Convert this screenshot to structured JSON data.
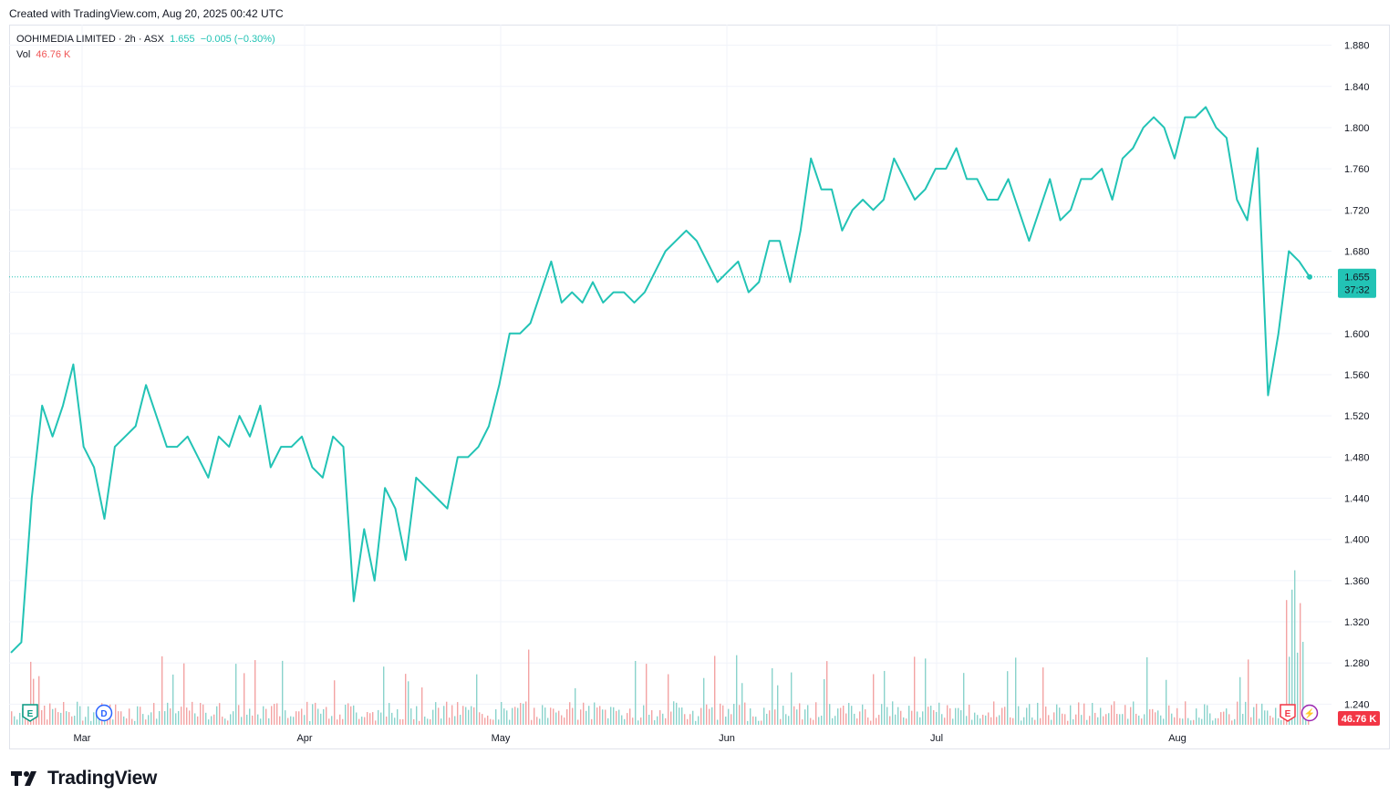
{
  "header": {
    "credit": "Created with TradingView.com, Aug 20, 2025 00:42 UTC"
  },
  "legend": {
    "symbol": "OOH!MEDIA LIMITED · 2h · ASX",
    "last": "1.655",
    "change": "−0.005 (−0.30%)",
    "vol_label": "Vol",
    "vol_value": "46.76 K"
  },
  "price_label": {
    "price": "1.655",
    "countdown": "37:32"
  },
  "volume_label": "46.76 K",
  "markers": [
    {
      "icon": "earnings-icon",
      "text": "E",
      "color": "#089981"
    },
    {
      "icon": "dividend-icon",
      "text": "D",
      "color": "#2962ff"
    },
    {
      "icon": "earnings-icon",
      "text": "E",
      "color": "#f23645"
    },
    {
      "icon": "lightning-icon",
      "text": "⚡",
      "color": "#9c27b0"
    }
  ],
  "footer": {
    "brand": "TradingView"
  },
  "colors": {
    "line": "#22c3b5",
    "vol_up": "#8ad3cc",
    "vol_down": "#f3a3a3",
    "grid": "#f0f3fa"
  },
  "chart_data": {
    "type": "line",
    "ylim": [
      1.22,
      1.9
    ],
    "x_labels": [
      "Mar",
      "Apr",
      "May",
      "Jun",
      "Jul",
      "Aug"
    ],
    "y_ticks": [
      "1.880",
      "1.840",
      "1.800",
      "1.760",
      "1.720",
      "1.680",
      "1.640",
      "1.600",
      "1.560",
      "1.520",
      "1.480",
      "1.440",
      "1.400",
      "1.360",
      "1.320",
      "1.280",
      "1.240"
    ],
    "last_price": 1.655,
    "series": [
      {
        "x": [
          "Feb 19",
          "Feb 20",
          "Feb 21",
          "Feb 24",
          "Feb 25",
          "Feb 26",
          "Feb 27",
          "Feb 28",
          "Mar 3",
          "Mar 4",
          "Mar 5",
          "Mar 6",
          "Mar 7",
          "Mar 10",
          "Mar 11",
          "Mar 12",
          "Mar 13",
          "Mar 14",
          "Mar 17",
          "Mar 18",
          "Mar 19",
          "Mar 20",
          "Mar 21",
          "Mar 24",
          "Mar 25",
          "Mar 26",
          "Mar 27",
          "Mar 28",
          "Mar 31",
          "Apr 1",
          "Apr 2",
          "Apr 3",
          "Apr 4",
          "Apr 7",
          "Apr 8",
          "Apr 9",
          "Apr 10",
          "Apr 11",
          "Apr 14",
          "Apr 15",
          "Apr 16",
          "Apr 17",
          "Apr 22",
          "Apr 23",
          "Apr 24",
          "Apr 28",
          "Apr 29",
          "Apr 30",
          "May 1",
          "May 2",
          "May 5",
          "May 6",
          "May 7",
          "May 8",
          "May 9",
          "May 12",
          "May 13",
          "May 14",
          "May 15",
          "May 16",
          "May 19",
          "May 20",
          "May 21",
          "May 22",
          "May 23",
          "May 26",
          "May 27",
          "May 28",
          "May 29",
          "May 30",
          "Jun 2",
          "Jun 3",
          "Jun 4",
          "Jun 5",
          "Jun 6",
          "Jun 10",
          "Jun 11",
          "Jun 12",
          "Jun 13",
          "Jun 16",
          "Jun 17",
          "Jun 18",
          "Jun 19",
          "Jun 20",
          "Jun 23",
          "Jun 24",
          "Jun 25",
          "Jun 26",
          "Jun 27",
          "Jun 30",
          "Jul 1",
          "Jul 2",
          "Jul 3",
          "Jul 4",
          "Jul 7",
          "Jul 8",
          "Jul 9",
          "Jul 10",
          "Jul 11",
          "Jul 14",
          "Jul 15",
          "Jul 16",
          "Jul 17",
          "Jul 18",
          "Jul 21",
          "Jul 22",
          "Jul 23",
          "Jul 24",
          "Jul 25",
          "Jul 28",
          "Jul 29",
          "Jul 30",
          "Jul 31",
          "Aug 1",
          "Aug 4",
          "Aug 5",
          "Aug 6",
          "Aug 7",
          "Aug 8",
          "Aug 11",
          "Aug 12",
          "Aug 13",
          "Aug 14",
          "Aug 15",
          "Aug 18",
          "Aug 19"
        ],
        "values": [
          1.29,
          1.3,
          1.44,
          1.53,
          1.5,
          1.53,
          1.57,
          1.49,
          1.47,
          1.42,
          1.49,
          1.5,
          1.51,
          1.55,
          1.52,
          1.49,
          1.49,
          1.5,
          1.48,
          1.46,
          1.5,
          1.49,
          1.52,
          1.5,
          1.53,
          1.47,
          1.49,
          1.49,
          1.5,
          1.47,
          1.46,
          1.5,
          1.49,
          1.34,
          1.41,
          1.36,
          1.45,
          1.43,
          1.38,
          1.46,
          1.45,
          1.44,
          1.43,
          1.48,
          1.48,
          1.49,
          1.51,
          1.55,
          1.6,
          1.6,
          1.61,
          1.64,
          1.67,
          1.63,
          1.64,
          1.63,
          1.65,
          1.63,
          1.64,
          1.64,
          1.63,
          1.64,
          1.66,
          1.68,
          1.69,
          1.7,
          1.69,
          1.67,
          1.65,
          1.66,
          1.67,
          1.64,
          1.65,
          1.69,
          1.69,
          1.65,
          1.7,
          1.77,
          1.74,
          1.74,
          1.7,
          1.72,
          1.73,
          1.72,
          1.73,
          1.77,
          1.75,
          1.73,
          1.74,
          1.76,
          1.76,
          1.78,
          1.75,
          1.75,
          1.73,
          1.73,
          1.75,
          1.72,
          1.69,
          1.72,
          1.75,
          1.71,
          1.72,
          1.75,
          1.75,
          1.76,
          1.73,
          1.77,
          1.78,
          1.8,
          1.81,
          1.8,
          1.77,
          1.81,
          1.81,
          1.82,
          1.8,
          1.79,
          1.73,
          1.71,
          1.78,
          1.54,
          1.6,
          1.68,
          1.67,
          1.655
        ]
      }
    ]
  }
}
